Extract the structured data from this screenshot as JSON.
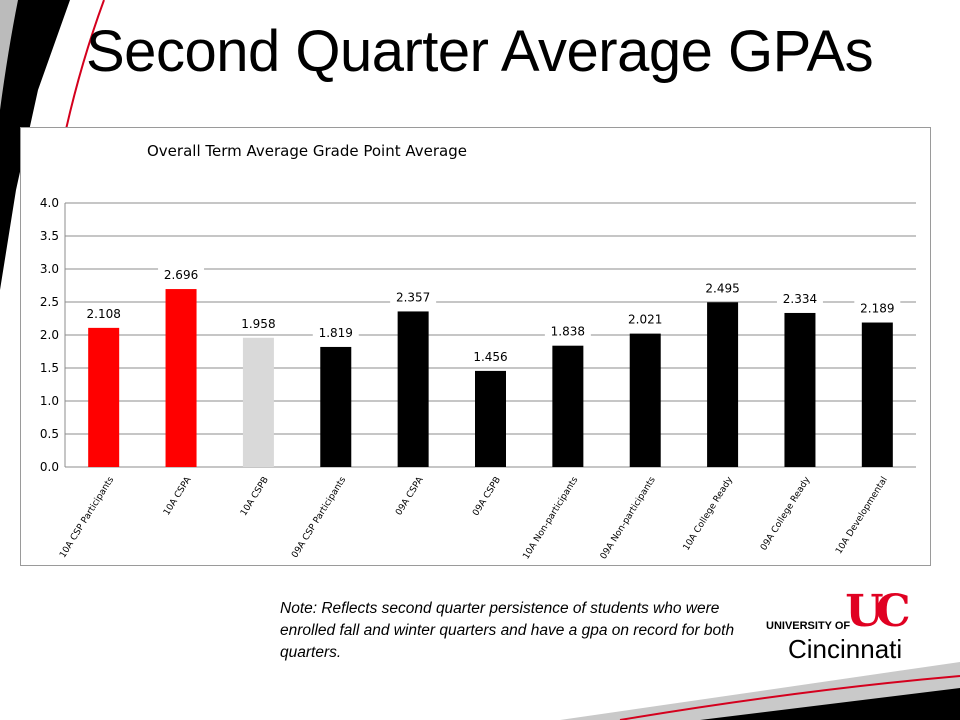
{
  "slide": {
    "title": "Second Quarter Average GPAs",
    "note": "Note: Reflects second quarter persistence of students who were enrolled fall and winter quarters and have a gpa on record for both quarters."
  },
  "logo": {
    "line1": "UNIVERSITY OF",
    "line2": "Cincinnati",
    "monogram": "UC",
    "color": "#e00122"
  },
  "colors": {
    "red": "#ff0000",
    "gray": "#d9d9d9",
    "black": "#000000",
    "grid": "#8c8c8c"
  },
  "chart_data": {
    "type": "bar",
    "title": "Overall Term Average Grade Point Average",
    "xlabel": "",
    "ylabel": "",
    "ylim": [
      0,
      4
    ],
    "y_ticks": [
      "0.0",
      "0.5",
      "1.0",
      "1.5",
      "2.0",
      "2.5",
      "3.0",
      "3.5",
      "4.0"
    ],
    "grid": true,
    "legend": "none",
    "categories": [
      "10A CSP Participants",
      "10A CSPA",
      "10A CSPB",
      "09A CSP Participants",
      "09A CSPA",
      "09A CSPB",
      "10A Non-participants",
      "09A Non-participants",
      "10A College Ready",
      "09A College Ready",
      "10A Developmental"
    ],
    "values": [
      2.108,
      2.696,
      1.958,
      1.819,
      2.357,
      1.456,
      1.838,
      2.021,
      2.495,
      2.334,
      2.189
    ],
    "data_labels": [
      "2.108",
      "2.696",
      "1.958",
      "1.819",
      "2.357",
      "1.456",
      "1.838",
      "2.021",
      "2.495",
      "2.334",
      "2.189"
    ],
    "bar_colors": [
      "#ff0000",
      "#ff0000",
      "#d9d9d9",
      "#000000",
      "#000000",
      "#000000",
      "#000000",
      "#000000",
      "#000000",
      "#000000",
      "#000000"
    ]
  }
}
